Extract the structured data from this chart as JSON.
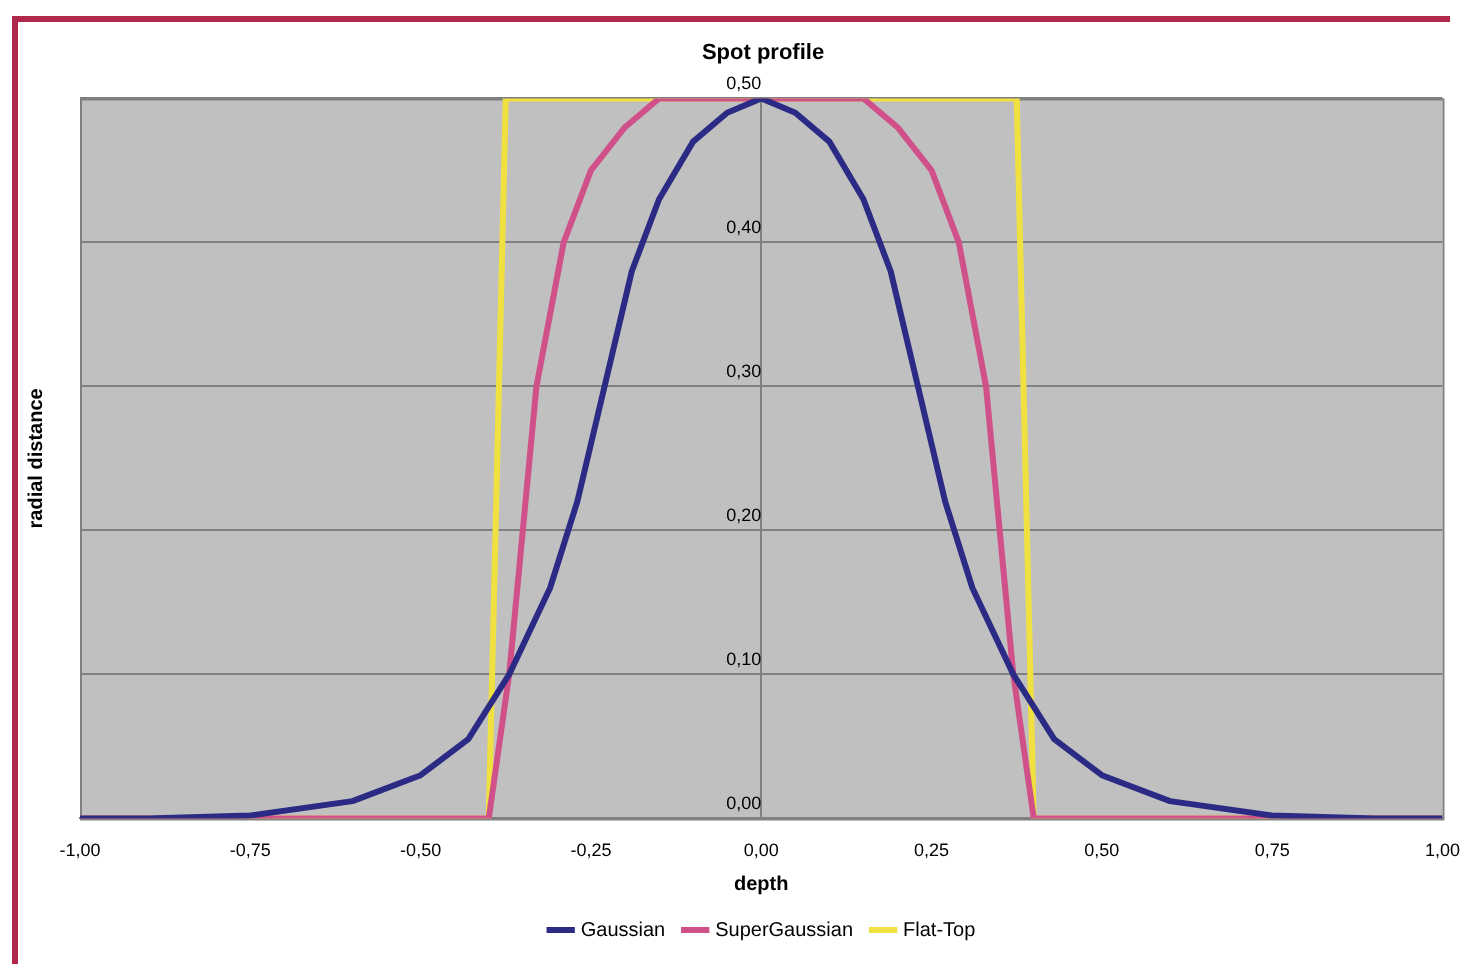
{
  "chart_data": {
    "type": "line",
    "title": "Spot profile",
    "xlabel": "depth",
    "ylabel": "radial distance",
    "xlim": [
      -1,
      1
    ],
    "xticks": [
      {
        "value": -1,
        "label": "-1,00"
      },
      {
        "value": -0.75,
        "label": "-0,75"
      },
      {
        "value": -0.5,
        "label": "-0,50"
      },
      {
        "value": -0.25,
        "label": "-0,25"
      },
      {
        "value": 0,
        "label": "0,00"
      },
      {
        "value": 0.25,
        "label": "0,25"
      },
      {
        "value": 0.5,
        "label": "0,50"
      },
      {
        "value": 0.75,
        "label": "0,75"
      },
      {
        "value": 1,
        "label": "1,00"
      }
    ],
    "ylim": [
      0,
      0.5
    ],
    "yticks": [
      {
        "value": 0,
        "label": "0,00"
      },
      {
        "value": 0.1,
        "label": "0,10"
      },
      {
        "value": 0.2,
        "label": "0,20"
      },
      {
        "value": 0.3,
        "label": "0,30"
      },
      {
        "value": 0.4,
        "label": "0,40"
      },
      {
        "value": 0.5,
        "label": "0,50"
      }
    ],
    "grid": "y",
    "legend": "bottom",
    "marker": "none",
    "line_style": "solid",
    "series": [
      {
        "name": "Gaussian",
        "color": "#2b2b86",
        "x": [
          -1,
          -0.9,
          -0.75,
          -0.6,
          -0.5,
          -0.43,
          -0.37,
          -0.31,
          -0.27,
          -0.23,
          -0.19,
          -0.15,
          -0.1,
          -0.05,
          0,
          0.05,
          0.1,
          0.15,
          0.19,
          0.23,
          0.27,
          0.31,
          0.37,
          0.43,
          0.5,
          0.6,
          0.75,
          0.9,
          1
        ],
        "values": [
          0,
          0,
          0.002,
          0.012,
          0.03,
          0.055,
          0.1,
          0.16,
          0.22,
          0.3,
          0.38,
          0.43,
          0.47,
          0.49,
          0.5,
          0.49,
          0.47,
          0.43,
          0.38,
          0.3,
          0.22,
          0.16,
          0.1,
          0.055,
          0.03,
          0.012,
          0.002,
          0,
          0
        ]
      },
      {
        "name": "SuperGaussian",
        "color": "#d0508a",
        "x": [
          -1,
          -0.4,
          -0.37,
          -0.35,
          -0.33,
          -0.29,
          -0.25,
          -0.2,
          -0.15,
          0,
          0.15,
          0.2,
          0.25,
          0.29,
          0.33,
          0.35,
          0.37,
          0.4,
          1
        ],
        "values": [
          0,
          0,
          0.1,
          0.2,
          0.3,
          0.4,
          0.45,
          0.48,
          0.5,
          0.5,
          0.5,
          0.48,
          0.45,
          0.4,
          0.3,
          0.2,
          0.1,
          0,
          0
        ]
      },
      {
        "name": "Flat-Top",
        "color": "#f0e040",
        "x": [
          -1,
          -0.4,
          -0.375,
          0.375,
          0.4,
          1
        ],
        "values": [
          0,
          0,
          0.5,
          0.5,
          0,
          0
        ]
      }
    ]
  }
}
